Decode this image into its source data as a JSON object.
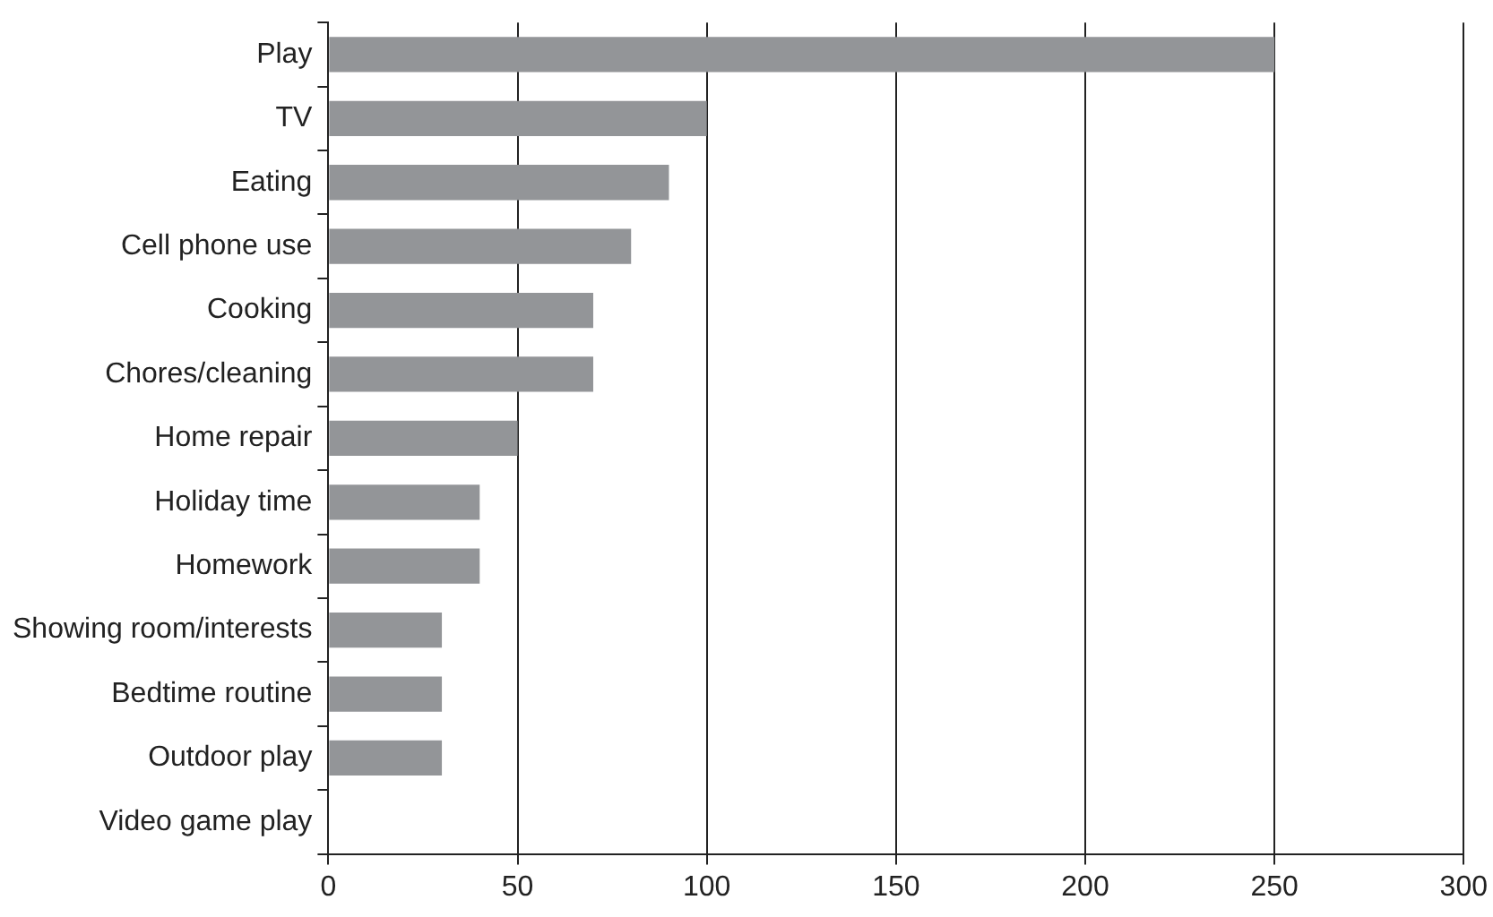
{
  "chart_data": {
    "type": "bar",
    "orientation": "horizontal",
    "categories": [
      "Play",
      "TV",
      "Eating",
      "Cell phone use",
      "Cooking",
      "Chores/cleaning",
      "Home repair",
      "Holiday time",
      "Homework",
      "Showing room/interests",
      "Bedtime routine",
      "Outdoor play",
      "Video game play"
    ],
    "values": [
      250,
      100,
      90,
      80,
      70,
      70,
      50,
      40,
      40,
      30,
      30,
      30,
      0
    ],
    "color": "#939598",
    "xlim": [
      0,
      300
    ],
    "xticks": [
      0,
      50,
      100,
      150,
      200,
      250,
      300
    ],
    "grid": "x",
    "legend": false
  }
}
